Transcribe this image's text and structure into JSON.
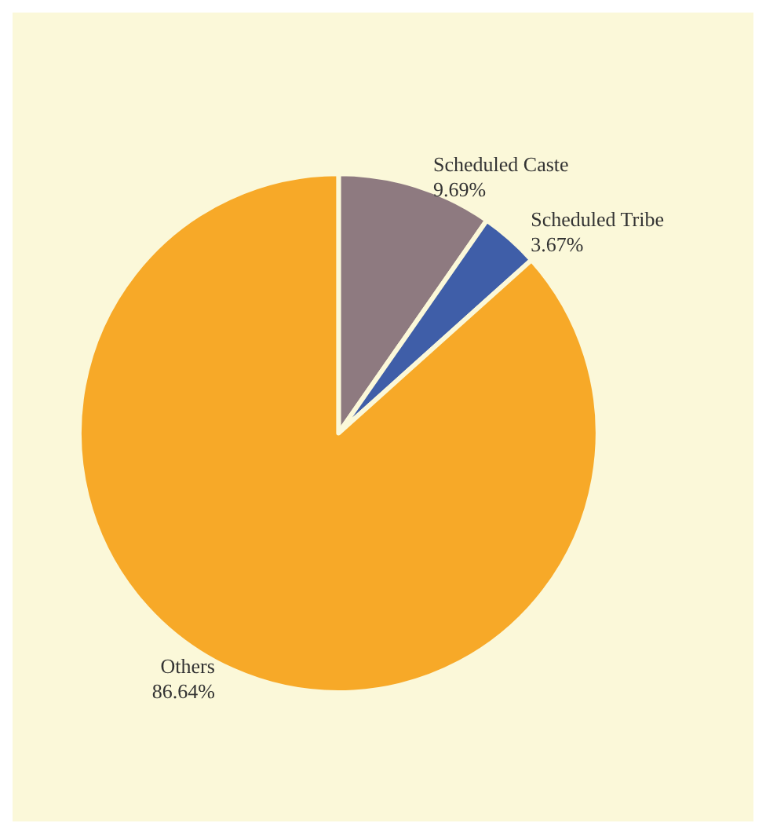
{
  "chart_data": {
    "type": "pie",
    "categories": [
      "Scheduled Caste",
      "Scheduled Tribe",
      "Others"
    ],
    "values": [
      9.69,
      3.67,
      86.64
    ],
    "colors": [
      "#8e7a80",
      "#3f5ea8",
      "#f7a928"
    ],
    "value_labels": [
      "9.69%",
      "3.67%",
      "86.64%"
    ],
    "legend": false
  }
}
